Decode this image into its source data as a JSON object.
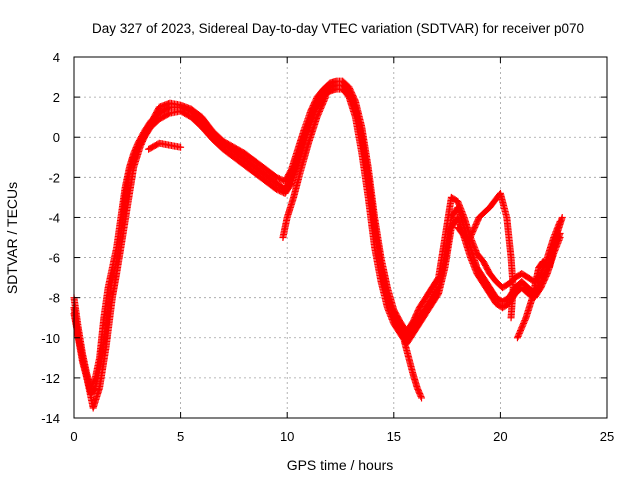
{
  "chart_data": {
    "type": "scatter",
    "title": "Day 327 of 2023, Sidereal Day-to-day VTEC variation (SDTVAR) for receiver p070",
    "xlabel": "GPS time / hours",
    "ylabel": "SDTVAR / TECUs",
    "xlim": [
      0,
      25
    ],
    "ylim": [
      -14,
      4
    ],
    "xticks": [
      "0",
      "5",
      "10",
      "15",
      "20",
      "25"
    ],
    "yticks": [
      "-14",
      "-12",
      "-10",
      "-8",
      "-6",
      "-4",
      "-2",
      "0",
      "2",
      "4"
    ],
    "grid": true,
    "marker": "plus",
    "color": "#ff0000",
    "series": [
      {
        "name": "track-1",
        "points": [
          [
            0.0,
            -8.0
          ],
          [
            0.2,
            -9.5
          ],
          [
            0.4,
            -10.8
          ],
          [
            0.6,
            -11.8
          ],
          [
            0.8,
            -12.5
          ],
          [
            1.0,
            -12.0
          ],
          [
            1.2,
            -11.0
          ],
          [
            1.4,
            -9.0
          ],
          [
            1.6,
            -7.5
          ],
          [
            1.8,
            -6.5
          ],
          [
            2.0,
            -5.5
          ],
          [
            2.2,
            -4.0
          ],
          [
            2.4,
            -2.5
          ],
          [
            2.6,
            -1.5
          ],
          [
            2.8,
            -0.8
          ],
          [
            3.0,
            -0.3
          ],
          [
            3.3,
            0.3
          ],
          [
            3.6,
            0.8
          ],
          [
            4.0,
            1.2
          ],
          [
            4.5,
            1.5
          ],
          [
            5.0,
            1.5
          ],
          [
            5.5,
            1.3
          ],
          [
            6.0,
            0.8
          ],
          [
            6.5,
            0.2
          ],
          [
            7.0,
            -0.3
          ],
          [
            7.5,
            -0.7
          ],
          [
            8.0,
            -1.1
          ],
          [
            8.5,
            -1.5
          ],
          [
            9.0,
            -1.9
          ],
          [
            9.5,
            -2.3
          ],
          [
            9.9,
            -2.6
          ],
          [
            10.2,
            -2.0
          ],
          [
            10.5,
            -1.0
          ],
          [
            10.8,
            0.0
          ],
          [
            11.1,
            1.0
          ],
          [
            11.4,
            1.7
          ],
          [
            11.7,
            2.2
          ],
          [
            12.0,
            2.5
          ],
          [
            12.3,
            2.6
          ],
          [
            12.6,
            2.6
          ],
          [
            12.9,
            2.3
          ],
          [
            13.2,
            1.5
          ],
          [
            13.5,
            0.0
          ],
          [
            13.8,
            -2.0
          ],
          [
            14.1,
            -4.5
          ],
          [
            14.4,
            -6.5
          ],
          [
            14.7,
            -8.0
          ],
          [
            15.0,
            -9.0
          ],
          [
            15.3,
            -9.6
          ],
          [
            15.6,
            -10.0
          ],
          [
            15.9,
            -9.5
          ],
          [
            16.2,
            -9.0
          ],
          [
            16.5,
            -8.5
          ],
          [
            16.8,
            -8.0
          ],
          [
            17.1,
            -7.5
          ],
          [
            17.4,
            -6.0
          ],
          [
            17.7,
            -4.0
          ],
          [
            18.0,
            -3.5
          ],
          [
            18.3,
            -4.5
          ],
          [
            18.6,
            -5.5
          ],
          [
            18.9,
            -6.5
          ],
          [
            19.2,
            -7.0
          ],
          [
            19.5,
            -7.5
          ],
          [
            19.8,
            -8.0
          ],
          [
            20.1,
            -8.2
          ],
          [
            20.4,
            -8.0
          ],
          [
            20.7,
            -7.5
          ],
          [
            21.0,
            -7.2
          ],
          [
            21.3,
            -7.5
          ],
          [
            21.6,
            -7.8
          ],
          [
            21.9,
            -7.2
          ],
          [
            22.2,
            -6.5
          ],
          [
            22.5,
            -5.5
          ],
          [
            22.8,
            -4.8
          ]
        ]
      },
      {
        "name": "track-2",
        "points": [
          [
            0.0,
            -8.5
          ],
          [
            0.2,
            -10.0
          ],
          [
            0.4,
            -11.2
          ],
          [
            0.6,
            -12.0
          ],
          [
            0.8,
            -12.8
          ],
          [
            1.0,
            -12.5
          ],
          [
            1.2,
            -11.5
          ],
          [
            1.4,
            -10.0
          ],
          [
            1.6,
            -8.5
          ],
          [
            1.8,
            -7.0
          ],
          [
            2.0,
            -6.2
          ],
          [
            2.2,
            -4.8
          ],
          [
            2.4,
            -3.0
          ],
          [
            2.6,
            -1.8
          ],
          [
            2.8,
            -1.0
          ],
          [
            3.0,
            -0.5
          ],
          [
            3.3,
            0.0
          ],
          [
            3.6,
            0.5
          ],
          [
            4.0,
            0.9
          ],
          [
            4.5,
            1.2
          ],
          [
            5.0,
            1.3
          ],
          [
            5.5,
            1.0
          ],
          [
            6.0,
            0.5
          ],
          [
            6.5,
            -0.1
          ],
          [
            7.0,
            -0.6
          ],
          [
            7.5,
            -1.0
          ],
          [
            8.0,
            -1.4
          ],
          [
            8.5,
            -1.8
          ],
          [
            9.0,
            -2.2
          ],
          [
            9.5,
            -2.6
          ],
          [
            9.9,
            -2.8
          ],
          [
            10.2,
            -2.3
          ],
          [
            10.5,
            -1.4
          ],
          [
            10.8,
            -0.3
          ],
          [
            11.1,
            0.7
          ],
          [
            11.4,
            1.5
          ],
          [
            11.7,
            2.0
          ],
          [
            12.0,
            2.3
          ],
          [
            12.3,
            2.4
          ],
          [
            12.6,
            2.4
          ],
          [
            12.9,
            2.0
          ],
          [
            13.2,
            1.0
          ],
          [
            13.5,
            -0.8
          ],
          [
            13.8,
            -3.0
          ],
          [
            14.1,
            -5.5
          ],
          [
            14.4,
            -7.2
          ],
          [
            14.7,
            -8.5
          ],
          [
            15.0,
            -9.3
          ],
          [
            15.3,
            -9.8
          ],
          [
            15.6,
            -10.3
          ],
          [
            15.9,
            -9.8
          ],
          [
            16.2,
            -9.3
          ],
          [
            16.5,
            -8.8
          ],
          [
            16.8,
            -8.3
          ],
          [
            17.1,
            -7.8
          ],
          [
            17.4,
            -6.5
          ],
          [
            17.7,
            -4.5
          ],
          [
            18.0,
            -4.0
          ],
          [
            18.3,
            -5.0
          ],
          [
            18.6,
            -6.0
          ],
          [
            18.9,
            -6.8
          ],
          [
            19.2,
            -7.3
          ],
          [
            19.5,
            -7.8
          ],
          [
            19.8,
            -8.3
          ],
          [
            20.1,
            -8.5
          ],
          [
            20.4,
            -8.3
          ],
          [
            20.7,
            -7.8
          ],
          [
            21.0,
            -7.5
          ],
          [
            21.3,
            -7.8
          ],
          [
            21.6,
            -8.0
          ],
          [
            21.9,
            -7.5
          ],
          [
            22.2,
            -6.8
          ],
          [
            22.5,
            -5.8
          ],
          [
            22.8,
            -5.0
          ]
        ]
      },
      {
        "name": "track-3",
        "points": [
          [
            0.0,
            -8.8
          ],
          [
            0.3,
            -10.5
          ],
          [
            0.6,
            -12.0
          ],
          [
            0.9,
            -13.5
          ],
          [
            1.2,
            -12.5
          ],
          [
            1.5,
            -10.5
          ],
          [
            1.8,
            -8.0
          ],
          [
            2.0,
            -6.8
          ],
          [
            2.2,
            -5.5
          ],
          [
            2.5,
            -3.5
          ],
          [
            2.8,
            -1.5
          ],
          [
            3.1,
            -0.5
          ],
          [
            3.5,
            0.5
          ],
          [
            4.0,
            1.5
          ],
          [
            4.5,
            1.7
          ],
          [
            5.0,
            1.6
          ],
          [
            5.5,
            1.4
          ],
          [
            6.0,
            1.0
          ],
          [
            6.5,
            0.3
          ],
          [
            7.0,
            -0.2
          ],
          [
            7.5,
            -0.5
          ],
          [
            8.0,
            -0.8
          ],
          [
            8.5,
            -1.2
          ],
          [
            9.0,
            -1.6
          ],
          [
            9.5,
            -2.0
          ],
          [
            9.9,
            -2.2
          ],
          [
            10.2,
            -1.6
          ],
          [
            10.5,
            -0.6
          ],
          [
            10.8,
            0.4
          ],
          [
            11.1,
            1.3
          ],
          [
            11.4,
            2.0
          ],
          [
            11.7,
            2.4
          ],
          [
            12.0,
            2.7
          ],
          [
            12.3,
            2.8
          ],
          [
            12.6,
            2.8
          ],
          [
            12.9,
            2.5
          ],
          [
            13.2,
            1.8
          ],
          [
            13.5,
            0.5
          ],
          [
            13.8,
            -1.5
          ],
          [
            14.1,
            -4.0
          ],
          [
            14.4,
            -6.0
          ],
          [
            14.7,
            -7.5
          ],
          [
            15.0,
            -8.6
          ],
          [
            15.3,
            -9.2
          ],
          [
            15.6,
            -9.7
          ],
          [
            15.9,
            -9.2
          ],
          [
            16.2,
            -8.5
          ],
          [
            16.5,
            -8.0
          ],
          [
            16.8,
            -7.5
          ],
          [
            17.1,
            -7.0
          ],
          [
            17.4,
            -5.0
          ],
          [
            17.7,
            -3.0
          ],
          [
            18.0,
            -3.2
          ],
          [
            18.3,
            -4.0
          ],
          [
            18.6,
            -5.0
          ],
          [
            18.9,
            -5.8
          ],
          [
            19.2,
            -6.2
          ],
          [
            19.5,
            -6.8
          ],
          [
            19.8,
            -7.2
          ],
          [
            20.1,
            -7.5
          ],
          [
            20.4,
            -7.3
          ],
          [
            20.7,
            -7.0
          ],
          [
            21.0,
            -6.8
          ],
          [
            21.3,
            -7.0
          ],
          [
            21.6,
            -7.2
          ],
          [
            21.9,
            -6.8
          ],
          [
            22.2,
            -6.0
          ],
          [
            22.5,
            -5.0
          ],
          [
            22.8,
            -4.2
          ]
        ]
      },
      {
        "name": "track-4",
        "points": [
          [
            3.5,
            -0.6
          ],
          [
            4.0,
            -0.3
          ],
          [
            4.5,
            -0.4
          ],
          [
            5.0,
            -0.5
          ]
        ]
      },
      {
        "name": "track-5",
        "points": [
          [
            9.8,
            -5.0
          ],
          [
            10.0,
            -4.0
          ],
          [
            10.3,
            -3.0
          ],
          [
            10.6,
            -1.8
          ],
          [
            11.0,
            -0.3
          ],
          [
            11.4,
            1.0
          ],
          [
            11.8,
            2.0
          ]
        ]
      },
      {
        "name": "track-6",
        "points": [
          [
            15.5,
            -10.2
          ],
          [
            15.7,
            -11.0
          ],
          [
            15.9,
            -11.8
          ],
          [
            16.1,
            -12.5
          ],
          [
            16.3,
            -13.0
          ]
        ]
      },
      {
        "name": "track-7",
        "points": [
          [
            18.0,
            -4.5
          ],
          [
            18.5,
            -5.2
          ],
          [
            19.0,
            -4.0
          ],
          [
            19.5,
            -3.5
          ],
          [
            20.0,
            -2.8
          ],
          [
            20.3,
            -4.0
          ],
          [
            20.5,
            -6.0
          ],
          [
            20.6,
            -7.5
          ],
          [
            20.5,
            -9.0
          ]
        ]
      },
      {
        "name": "track-8",
        "points": [
          [
            20.8,
            -10.0
          ],
          [
            21.2,
            -9.0
          ],
          [
            21.5,
            -8.0
          ],
          [
            21.8,
            -6.5
          ],
          [
            22.0,
            -6.2
          ],
          [
            22.3,
            -6.5
          ],
          [
            22.6,
            -5.0
          ],
          [
            22.9,
            -4.0
          ]
        ]
      }
    ]
  }
}
